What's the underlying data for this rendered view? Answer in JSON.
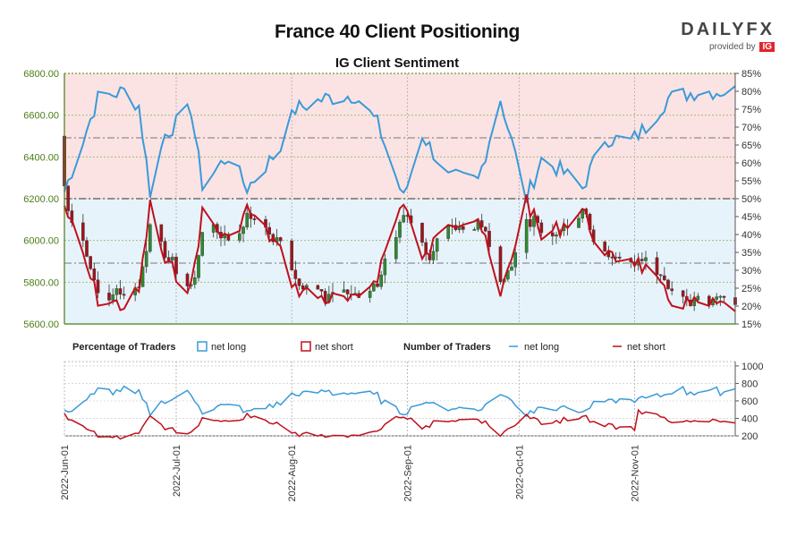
{
  "title": "France 40 Client Positioning",
  "subtitle": "IG Client Sentiment",
  "brand": {
    "name": "DAILYFX",
    "provided_by": "provided by",
    "ig": "IG"
  },
  "colors": {
    "net_long": "#3a9ad9",
    "net_short": "#c0101b",
    "candle_up": "#2e8b2e",
    "candle_down": "#a1141d",
    "price_axis": "#4a7d16",
    "bg_long": "#e7f3fb",
    "bg_short": "#fbe3e3"
  },
  "chart_data": [
    {
      "type": "candlestick+line",
      "price_axis": {
        "ticks": [
          "5600.00",
          "5800.00",
          "6000.00",
          "6200.00",
          "6400.00",
          "6600.00",
          "6800.00"
        ],
        "range": [
          5600,
          6800
        ]
      },
      "percent_axis": {
        "ticks": [
          "15%",
          "20%",
          "25%",
          "30%",
          "35%",
          "40%",
          "45%",
          "50%",
          "55%",
          "60%",
          "65%",
          "70%",
          "75%",
          "80%",
          "85%"
        ],
        "range": [
          15,
          85
        ]
      },
      "x_axis": {
        "ticks": [
          "2022-Jun-01",
          "2022-Jul-01",
          "2022-Aug-01",
          "2022-Sep-01",
          "2022-Oct-01",
          "2022-Nov-01"
        ],
        "range": [
          "2022-06-01",
          "2022-11-28"
        ]
      },
      "net_long_pct_sample": [
        [
          "2022-06-01",
          52
        ],
        [
          "2022-06-10",
          78
        ],
        [
          "2022-06-17",
          80
        ],
        [
          "2022-06-21",
          76
        ],
        [
          "2022-06-24",
          52
        ],
        [
          "2022-06-28",
          68
        ],
        [
          "2022-07-05",
          75
        ],
        [
          "2022-07-08",
          54
        ],
        [
          "2022-07-15",
          62
        ],
        [
          "2022-07-20",
          53
        ],
        [
          "2022-07-28",
          63
        ],
        [
          "2022-08-02",
          75
        ],
        [
          "2022-08-10",
          78
        ],
        [
          "2022-08-18",
          79
        ],
        [
          "2022-08-24",
          71
        ],
        [
          "2022-08-31",
          50
        ],
        [
          "2022-09-05",
          68
        ],
        [
          "2022-09-12",
          56
        ],
        [
          "2022-09-20",
          55
        ],
        [
          "2022-09-26",
          78
        ],
        [
          "2022-10-03",
          50
        ],
        [
          "2022-10-07",
          61
        ],
        [
          "2022-10-12",
          58
        ],
        [
          "2022-10-18",
          53
        ],
        [
          "2022-10-24",
          67
        ],
        [
          "2022-10-31",
          66
        ],
        [
          "2022-11-04",
          70
        ],
        [
          "2022-11-10",
          78
        ],
        [
          "2022-11-18",
          80
        ],
        [
          "2022-11-28",
          80
        ]
      ],
      "net_short_pct_sample": [
        [
          "2022-06-01",
          48
        ],
        [
          "2022-06-10",
          22
        ],
        [
          "2022-06-17",
          20
        ],
        [
          "2022-06-21",
          24
        ],
        [
          "2022-06-24",
          48
        ],
        [
          "2022-06-28",
          32
        ],
        [
          "2022-07-05",
          25
        ],
        [
          "2022-07-08",
          46
        ],
        [
          "2022-07-15",
          38
        ],
        [
          "2022-07-20",
          47
        ],
        [
          "2022-07-28",
          37
        ],
        [
          "2022-08-02",
          25
        ],
        [
          "2022-08-10",
          22
        ],
        [
          "2022-08-18",
          21
        ],
        [
          "2022-08-24",
          29
        ],
        [
          "2022-08-31",
          50
        ],
        [
          "2022-09-05",
          32
        ],
        [
          "2022-09-12",
          44
        ],
        [
          "2022-09-20",
          45
        ],
        [
          "2022-09-26",
          22
        ],
        [
          "2022-10-03",
          50
        ],
        [
          "2022-10-07",
          39
        ],
        [
          "2022-10-12",
          42
        ],
        [
          "2022-10-18",
          47
        ],
        [
          "2022-10-24",
          33
        ],
        [
          "2022-10-31",
          34
        ],
        [
          "2022-11-04",
          30
        ],
        [
          "2022-11-10",
          22
        ],
        [
          "2022-11-18",
          20
        ],
        [
          "2022-11-28",
          20
        ]
      ]
    },
    {
      "type": "line",
      "y_axis": {
        "ticks": [
          "200",
          "400",
          "600",
          "800",
          "1000"
        ],
        "range": [
          200,
          1050
        ]
      }
    }
  ],
  "legend": {
    "percentage_label": "Percentage of Traders",
    "number_label": "Number of Traders",
    "net_long": "net long",
    "net_short": "net short"
  }
}
